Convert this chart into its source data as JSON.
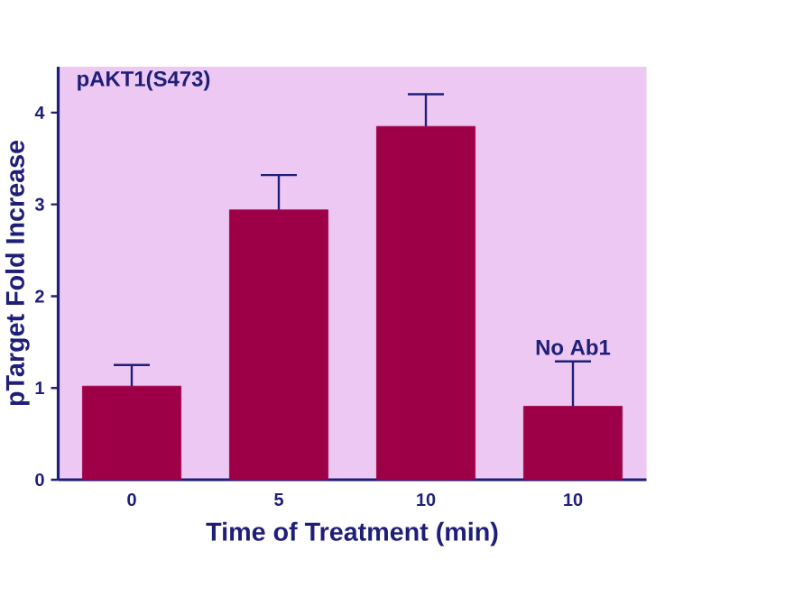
{
  "chart_data": {
    "type": "bar",
    "title": "pAKT1(S473)",
    "xlabel": "Time of Treatment (min)",
    "ylabel": "pTarget Fold Increase",
    "categories": [
      "0",
      "5",
      "10",
      "10"
    ],
    "values": [
      1.02,
      2.94,
      3.85,
      0.8
    ],
    "errors": [
      [
        1.02,
        1.25
      ],
      [
        2.94,
        3.32
      ],
      [
        3.85,
        4.2
      ],
      [
        0.8,
        1.29
      ]
    ],
    "color": "#9e0047",
    "ylim": [
      0,
      4.5
    ],
    "yticks": [
      0,
      1,
      2,
      3,
      4
    ],
    "annotations": [
      "No Ab1"
    ]
  }
}
